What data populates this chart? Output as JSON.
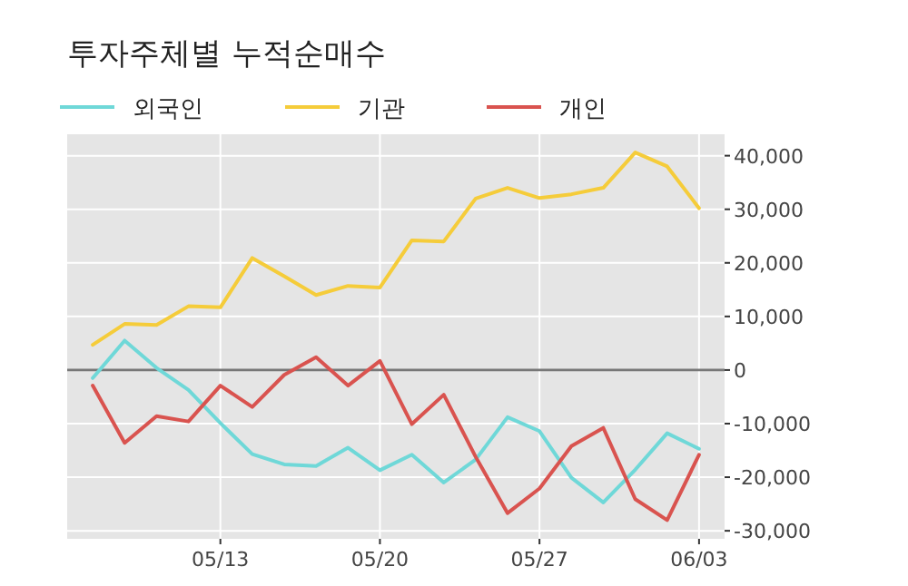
{
  "chart_data": {
    "type": "line",
    "title": "투자주체별 누적순매수",
    "categories": [
      null,
      null,
      null,
      null,
      "05/13",
      null,
      null,
      null,
      null,
      "05/20",
      null,
      null,
      null,
      null,
      "05/27",
      null,
      null,
      null,
      null,
      "06/03"
    ],
    "series": [
      {
        "name": "외국인",
        "color": "#6fd8d8",
        "values": [
          -1500,
          5500,
          400,
          -3700,
          -9900,
          -15700,
          -17600,
          -17900,
          -14500,
          -18700,
          -15800,
          -21000,
          -16700,
          -8800,
          -11400,
          -20100,
          -24700,
          -18600,
          -11800,
          -14700
        ]
      },
      {
        "name": "기관",
        "color": "#f5cc3a",
        "values": [
          4700,
          8600,
          8400,
          11900,
          11700,
          20900,
          17500,
          14000,
          15700,
          15400,
          24200,
          24000,
          32000,
          34000,
          32100,
          32800,
          34000,
          40600,
          38000,
          30200
        ]
      },
      {
        "name": "개인",
        "color": "#d9534f",
        "values": [
          -2900,
          -13600,
          -8600,
          -9600,
          -2900,
          -6900,
          -900,
          2400,
          -2900,
          1700,
          -10100,
          -4600,
          -16200,
          -26700,
          -22100,
          -14200,
          -10800,
          -24100,
          -28000,
          -15800
        ]
      }
    ],
    "ylim": [
      -31500,
      44000
    ],
    "yticks": [
      {
        "value": -30000,
        "label": "-30,000"
      },
      {
        "value": -20000,
        "label": "-20,000"
      },
      {
        "value": -10000,
        "label": "-10,000"
      },
      0,
      {
        "value": 10000,
        "label": "10,000"
      },
      {
        "value": 20000,
        "label": "20,000"
      },
      {
        "value": 30000,
        "label": "30,000"
      },
      {
        "value": 40000,
        "label": "40,000"
      }
    ],
    "ref_lines": [
      {
        "axis": "y",
        "value": 0,
        "color": "#777777"
      }
    ],
    "grid": true,
    "legend": "top left",
    "marker": "none",
    "line_style": "solid"
  }
}
